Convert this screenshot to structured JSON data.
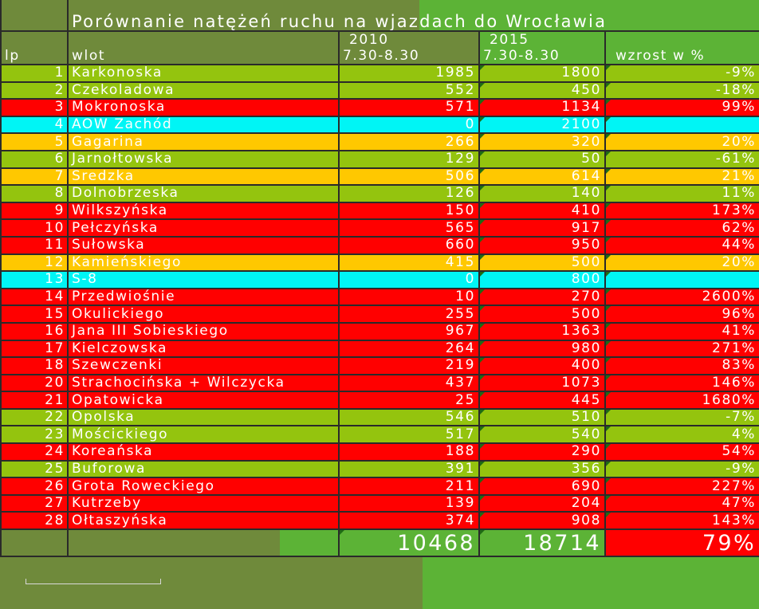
{
  "title": "Porównanie natężeń ruchu na wjazdach do Wrocławia",
  "headers": {
    "lp": "lp",
    "wlot": "wlot",
    "year1": "2010",
    "time1": "7.30-8.30",
    "year2": "2015",
    "time2": "7.30-8.30",
    "growth": "wzrost w %"
  },
  "colors": {
    "green": "#94c40e",
    "red": "#ff0000",
    "cyan": "#00f5f5",
    "orange": "#ffc800"
  },
  "rows": [
    {
      "lp": "1",
      "wlot": "Karkonoska",
      "v2010": "1985",
      "v2015": "1800",
      "growth": "-9%",
      "color": "green"
    },
    {
      "lp": "2",
      "wlot": "Czekoladowa",
      "v2010": "552",
      "v2015": "450",
      "growth": "-18%",
      "color": "green"
    },
    {
      "lp": "3",
      "wlot": "Mokronoska",
      "v2010": "571",
      "v2015": "1134",
      "growth": "99%",
      "color": "red"
    },
    {
      "lp": "4",
      "wlot": "AOW Zachód",
      "v2010": "0",
      "v2015": "2100",
      "growth": "",
      "color": "cyan"
    },
    {
      "lp": "5",
      "wlot": "Gagarina",
      "v2010": "266",
      "v2015": "320",
      "growth": "20%",
      "color": "orange"
    },
    {
      "lp": "6",
      "wlot": "Jarnołtowska",
      "v2010": "129",
      "v2015": "50",
      "growth": "-61%",
      "color": "green"
    },
    {
      "lp": "7",
      "wlot": "Sredzka",
      "v2010": "506",
      "v2015": "614",
      "growth": "21%",
      "color": "orange"
    },
    {
      "lp": "8",
      "wlot": "Dolnobrzeska",
      "v2010": "126",
      "v2015": "140",
      "growth": "11%",
      "color": "green"
    },
    {
      "lp": "9",
      "wlot": "Wilkszyńska",
      "v2010": "150",
      "v2015": "410",
      "growth": "173%",
      "color": "red"
    },
    {
      "lp": "10",
      "wlot": "Pełczyńska",
      "v2010": "565",
      "v2015": "917",
      "growth": "62%",
      "color": "red"
    },
    {
      "lp": "11",
      "wlot": "Sułowska",
      "v2010": "660",
      "v2015": "950",
      "growth": "44%",
      "color": "red"
    },
    {
      "lp": "12",
      "wlot": "Kamieńskiego",
      "v2010": "415",
      "v2015": "500",
      "growth": "20%",
      "color": "orange"
    },
    {
      "lp": "13",
      "wlot": "S-8",
      "v2010": "0",
      "v2015": "800",
      "growth": "",
      "color": "cyan"
    },
    {
      "lp": "14",
      "wlot": "Przedwiośnie",
      "v2010": "10",
      "v2015": "270",
      "growth": "2600%",
      "color": "red"
    },
    {
      "lp": "15",
      "wlot": "Okulickiego",
      "v2010": "255",
      "v2015": "500",
      "growth": "96%",
      "color": "red"
    },
    {
      "lp": "16",
      "wlot": "Jana III Sobieskiego",
      "v2010": "967",
      "v2015": "1363",
      "growth": "41%",
      "color": "red"
    },
    {
      "lp": "17",
      "wlot": "Kielczowska",
      "v2010": "264",
      "v2015": "980",
      "growth": "271%",
      "color": "red"
    },
    {
      "lp": "18",
      "wlot": "Szewczenki",
      "v2010": "219",
      "v2015": "400",
      "growth": "83%",
      "color": "red"
    },
    {
      "lp": "20",
      "wlot": "Strachocińska + Wilczycka",
      "v2010": "437",
      "v2015": "1073",
      "growth": "146%",
      "color": "red"
    },
    {
      "lp": "21",
      "wlot": "Opatowicka",
      "v2010": "25",
      "v2015": "445",
      "growth": "1680%",
      "color": "red"
    },
    {
      "lp": "22",
      "wlot": "Opolska",
      "v2010": "546",
      "v2015": "510",
      "growth": "-7%",
      "color": "green"
    },
    {
      "lp": "23",
      "wlot": "Mościckiego",
      "v2010": "517",
      "v2015": "540",
      "growth": "4%",
      "color": "green"
    },
    {
      "lp": "24",
      "wlot": "Koreańska",
      "v2010": "188",
      "v2015": "290",
      "growth": "54%",
      "color": "red"
    },
    {
      "lp": "25",
      "wlot": "Buforowa",
      "v2010": "391",
      "v2015": "356",
      "growth": "-9%",
      "color": "green"
    },
    {
      "lp": "26",
      "wlot": "Grota Roweckiego",
      "v2010": "211",
      "v2015": "690",
      "growth": "227%",
      "color": "red"
    },
    {
      "lp": "27",
      "wlot": "Kutrzeby",
      "v2010": "139",
      "v2015": "204",
      "growth": "47%",
      "color": "red"
    },
    {
      "lp": "28",
      "wlot": "Ołtaszyńska",
      "v2010": "374",
      "v2015": "908",
      "growth": "143%",
      "color": "red"
    }
  ],
  "totals": {
    "v2010": "10468",
    "v2015": "18714",
    "growth": "79%"
  }
}
